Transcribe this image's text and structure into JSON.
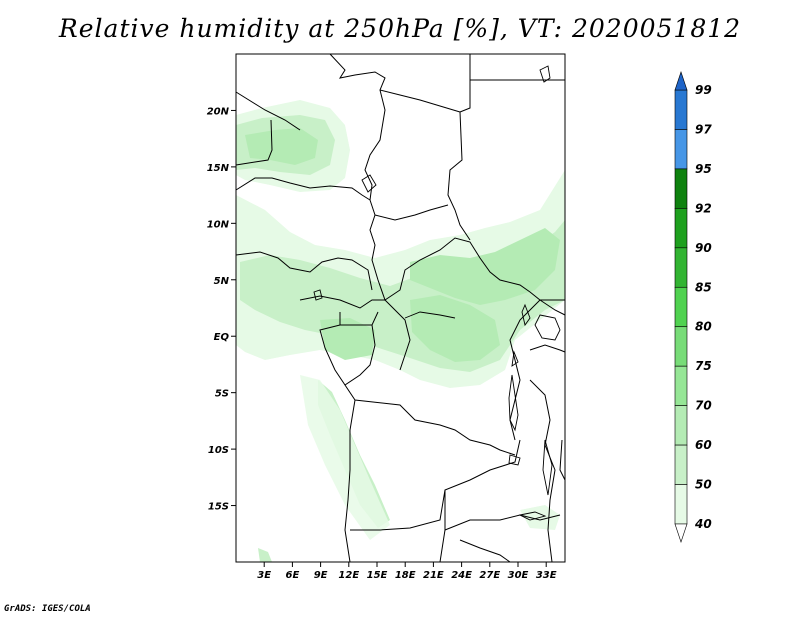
{
  "title": "Relative humidity at 250hPa [%], VT: 2020051812",
  "credit": "GrADS: IGES/COLA",
  "map": {
    "lon_range": [
      0,
      35
    ],
    "lat_range": [
      -20,
      25
    ],
    "lat_ticks": [
      {
        "value": 20,
        "label": "20N"
      },
      {
        "value": 15,
        "label": "15N"
      },
      {
        "value": 10,
        "label": "10N"
      },
      {
        "value": 5,
        "label": "5N"
      },
      {
        "value": 0,
        "label": "EQ"
      },
      {
        "value": -5,
        "label": "5S"
      },
      {
        "value": -10,
        "label": "10S"
      },
      {
        "value": -15,
        "label": "15S"
      }
    ],
    "lon_ticks": [
      {
        "value": 3,
        "label": "3E"
      },
      {
        "value": 6,
        "label": "6E"
      },
      {
        "value": 9,
        "label": "9E"
      },
      {
        "value": 12,
        "label": "12E"
      },
      {
        "value": 15,
        "label": "15E"
      },
      {
        "value": 18,
        "label": "18E"
      },
      {
        "value": 21,
        "label": "21E"
      },
      {
        "value": 24,
        "label": "24E"
      },
      {
        "value": 27,
        "label": "27E"
      },
      {
        "value": 30,
        "label": "30E"
      },
      {
        "value": 33,
        "label": "33E"
      }
    ]
  },
  "colorbar": {
    "levels": [
      "40",
      "50",
      "60",
      "70",
      "75",
      "80",
      "85",
      "90",
      "92",
      "95",
      "97",
      "99"
    ],
    "colors": [
      "#ffffff",
      "#e6fae6",
      "#c8f0c8",
      "#b4ebb4",
      "#96e696",
      "#78dc78",
      "#50d250",
      "#32b432",
      "#1ea01e",
      "#0f820f",
      "#4696e6",
      "#2878d2",
      "#1e64c8"
    ]
  }
}
